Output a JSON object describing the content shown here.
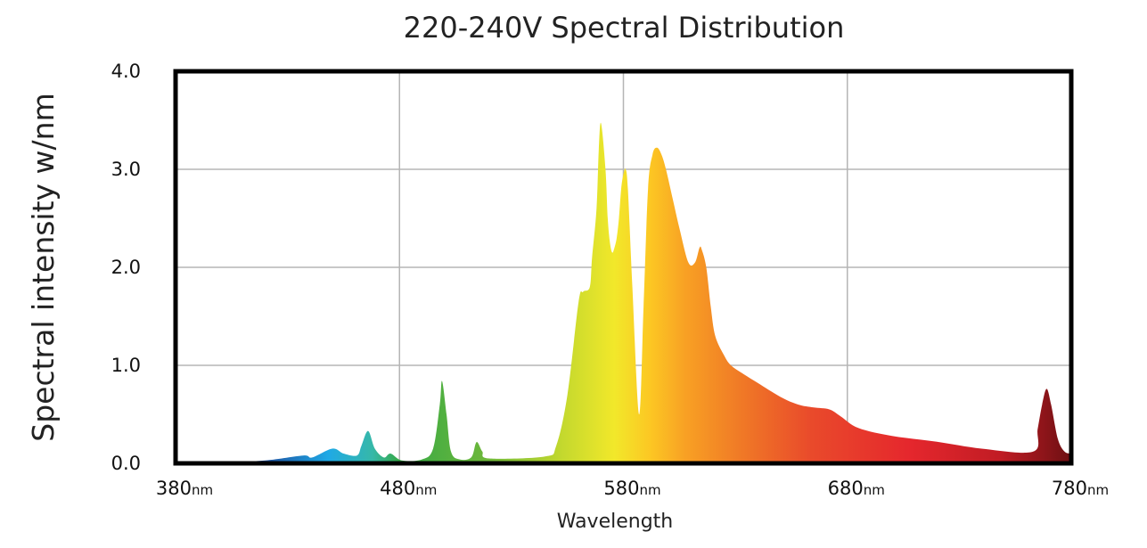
{
  "chart_data": {
    "type": "area",
    "title": "220-240V Spectral Distribution",
    "xlabel": "Wavelength",
    "ylabel": "Spectral intensity w/nm",
    "x_unit": "nm",
    "xlim": [
      380,
      780
    ],
    "ylim": [
      0,
      4
    ],
    "x_ticks": [
      {
        "value": 380,
        "label": "380"
      },
      {
        "value": 480,
        "label": "480"
      },
      {
        "value": 580,
        "label": "580"
      },
      {
        "value": 680,
        "label": "680"
      },
      {
        "value": 780,
        "label": "780"
      }
    ],
    "y_ticks": [
      {
        "value": 0,
        "label": "0.0"
      },
      {
        "value": 1,
        "label": "1.0"
      },
      {
        "value": 2,
        "label": "2.0"
      },
      {
        "value": 3,
        "label": "3.0"
      },
      {
        "value": 4,
        "label": "4.0"
      }
    ],
    "grid": true,
    "legend": "none",
    "fill": "wavelength-colored gradient (blue to deep red)",
    "series": [
      {
        "x": [
          380,
          400,
          420,
          437,
          441,
          450,
          455,
          461,
          463,
          466,
          469,
          473,
          476,
          481,
          490,
          495,
          498,
          499,
          501,
          503,
          507,
          512,
          514,
          515,
          517,
          520,
          545,
          550,
          555,
          560,
          562,
          565,
          566,
          568,
          569,
          570,
          572,
          573,
          574,
          575,
          576,
          577,
          578,
          579,
          580,
          581,
          582,
          584,
          587,
          589,
          591,
          593,
          595,
          597,
          599,
          602,
          605,
          609,
          612,
          614,
          615,
          617,
          619,
          621,
          625,
          628,
          633,
          640,
          650,
          658,
          665,
          672,
          677,
          685,
          700,
          720,
          740,
          763,
          765,
          767,
          769,
          771,
          774,
          777,
          780
        ],
        "y": [
          0.0,
          0.01,
          0.03,
          0.08,
          0.06,
          0.15,
          0.1,
          0.08,
          0.18,
          0.33,
          0.15,
          0.06,
          0.1,
          0.03,
          0.04,
          0.15,
          0.6,
          0.84,
          0.5,
          0.12,
          0.04,
          0.06,
          0.2,
          0.21,
          0.12,
          0.05,
          0.07,
          0.18,
          0.7,
          1.65,
          1.75,
          1.8,
          2.1,
          2.6,
          3.2,
          3.47,
          3.0,
          2.5,
          2.25,
          2.15,
          2.2,
          2.3,
          2.5,
          2.8,
          2.95,
          3.0,
          2.8,
          1.8,
          0.5,
          1.6,
          2.8,
          3.15,
          3.22,
          3.15,
          3.0,
          2.7,
          2.4,
          2.05,
          2.05,
          2.2,
          2.18,
          2.0,
          1.6,
          1.3,
          1.1,
          1.0,
          0.92,
          0.82,
          0.68,
          0.6,
          0.57,
          0.55,
          0.48,
          0.36,
          0.28,
          0.22,
          0.15,
          0.12,
          0.35,
          0.6,
          0.76,
          0.6,
          0.25,
          0.12,
          0.1
        ]
      }
    ]
  }
}
